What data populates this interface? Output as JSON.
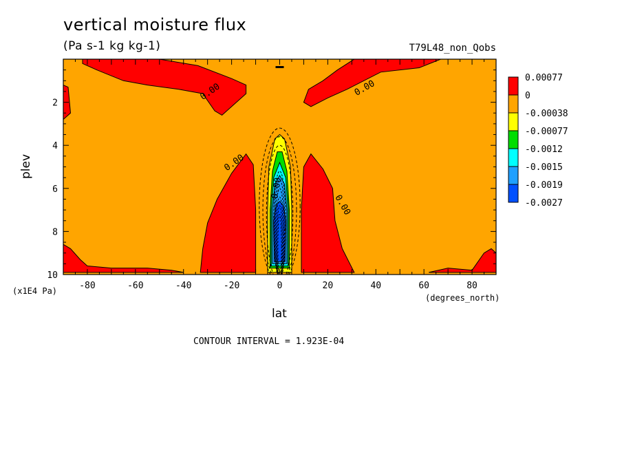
{
  "chart_data": {
    "type": "heatmap",
    "title": "vertical moisture flux",
    "subtitle": "(Pa s-1 kg kg-1)",
    "dataset_label": "T79L48_non_Qobs",
    "xlabel": "lat",
    "xunit": "(degrees_north)",
    "ylabel": "plev",
    "yunit": "(x1E4 Pa)",
    "xlim": [
      -90,
      90
    ],
    "ylim": [
      10,
      0
    ],
    "xticks": [
      -80,
      -60,
      -40,
      -20,
      0,
      20,
      40,
      60,
      80
    ],
    "yticks": [
      2,
      4,
      6,
      8,
      10
    ],
    "footer": "CONTOUR INTERVAL = 1.923E-04",
    "contour_label": "0.00",
    "legend": [
      {
        "label": "0.00077",
        "color": "#ff0000"
      },
      {
        "label": "0",
        "color": "#ffa500"
      },
      {
        "label": "-0.00038",
        "color": "#ffff00"
      },
      {
        "label": "-0.00077",
        "color": "#00dd00"
      },
      {
        "label": "-0.0012",
        "color": "#00ffff"
      },
      {
        "label": "-0.0015",
        "color": "#1fa0ff"
      },
      {
        "label": "-0.0019",
        "color": "#0050ff"
      },
      {
        "label": "-0.0027",
        "color": ""
      }
    ],
    "regions": [
      {
        "name": "upper-left-positive",
        "color": "#ff0000",
        "points": [
          [
            -90,
            1.2
          ],
          [
            -88,
            1.3
          ],
          [
            -87,
            2.5
          ],
          [
            -90,
            2.8
          ]
        ]
      },
      {
        "name": "upper-band-left",
        "color": "#ff0000",
        "points": [
          [
            -82,
            0.0
          ],
          [
            -50,
            0.0
          ],
          [
            -34,
            0.3
          ],
          [
            -20,
            0.9
          ],
          [
            -14,
            1.2
          ],
          [
            -14,
            1.6
          ],
          [
            -18,
            2.0
          ],
          [
            -24,
            2.6
          ],
          [
            -27,
            2.4
          ],
          [
            -32,
            1.6
          ],
          [
            -42,
            1.4
          ],
          [
            -55,
            1.2
          ],
          [
            -65,
            1.0
          ],
          [
            -76,
            0.5
          ],
          [
            -82,
            0.2
          ]
        ]
      },
      {
        "name": "upper-band-right",
        "color": "#ff0000",
        "points": [
          [
            31,
            0.0
          ],
          [
            67,
            0.0
          ],
          [
            58,
            0.4
          ],
          [
            42,
            0.6
          ],
          [
            28,
            1.4
          ],
          [
            20,
            1.8
          ],
          [
            13,
            2.2
          ],
          [
            10,
            2.0
          ],
          [
            12,
            1.4
          ],
          [
            18,
            1.0
          ],
          [
            24,
            0.5
          ]
        ]
      },
      {
        "name": "left-lobe",
        "color": "#ff0000",
        "points": [
          [
            -33,
            9.9
          ],
          [
            -32,
            8.8
          ],
          [
            -30,
            7.6
          ],
          [
            -26,
            6.5
          ],
          [
            -20,
            5.3
          ],
          [
            -14,
            4.4
          ],
          [
            -11,
            4.9
          ],
          [
            -10,
            7.0
          ],
          [
            -10,
            9.9
          ]
        ]
      },
      {
        "name": "right-lobe",
        "color": "#ff0000",
        "points": [
          [
            9,
            9.9
          ],
          [
            9,
            7.0
          ],
          [
            10,
            5.0
          ],
          [
            13,
            4.4
          ],
          [
            18,
            5.1
          ],
          [
            22,
            6.0
          ],
          [
            23,
            7.5
          ],
          [
            26,
            8.8
          ],
          [
            31,
            9.9
          ]
        ]
      },
      {
        "name": "bottom-left-strip",
        "color": "#ff0000",
        "points": [
          [
            -90,
            8.6
          ],
          [
            -87,
            8.8
          ],
          [
            -83,
            9.3
          ],
          [
            -80,
            9.6
          ],
          [
            -70,
            9.7
          ],
          [
            -55,
            9.7
          ],
          [
            -45,
            9.8
          ],
          [
            -40,
            9.9
          ],
          [
            -90,
            9.9
          ]
        ]
      },
      {
        "name": "bottom-right-strip",
        "color": "#ff0000",
        "points": [
          [
            62,
            9.9
          ],
          [
            70,
            9.7
          ],
          [
            80,
            9.8
          ],
          [
            85,
            9.0
          ],
          [
            88,
            8.8
          ],
          [
            90,
            9.0
          ],
          [
            90,
            9.9
          ]
        ]
      },
      {
        "name": "core-yellow",
        "color": "#ffff00",
        "points": [
          [
            -5,
            9.9
          ],
          [
            -5,
            7.0
          ],
          [
            -4.5,
            5.0
          ],
          [
            -2,
            3.7
          ],
          [
            0,
            3.5
          ],
          [
            2,
            3.7
          ],
          [
            4.5,
            5.0
          ],
          [
            5,
            7.0
          ],
          [
            5,
            9.9
          ]
        ]
      },
      {
        "name": "core-green",
        "color": "#00dd00",
        "points": [
          [
            -4,
            9.7
          ],
          [
            -4,
            7.0
          ],
          [
            -3,
            5.2
          ],
          [
            -1,
            4.3
          ],
          [
            1,
            4.3
          ],
          [
            3,
            5.2
          ],
          [
            4,
            7.0
          ],
          [
            4,
            9.7
          ]
        ]
      },
      {
        "name": "core-cyan",
        "color": "#00ffff",
        "points": [
          [
            -3.5,
            9.6
          ],
          [
            -3.5,
            7.0
          ],
          [
            -2.5,
            5.5
          ],
          [
            0,
            4.8
          ],
          [
            2.5,
            5.5
          ],
          [
            3.5,
            7.0
          ],
          [
            3.5,
            9.6
          ]
        ]
      },
      {
        "name": "core-light-blue",
        "color": "#1fa0ff",
        "points": [
          [
            -3,
            9.5
          ],
          [
            -3,
            7.0
          ],
          [
            -2,
            5.8
          ],
          [
            0,
            5.4
          ],
          [
            2,
            5.8
          ],
          [
            3,
            7.0
          ],
          [
            3,
            9.5
          ]
        ]
      },
      {
        "name": "core-deep-blue",
        "color": "#0050ff",
        "points": [
          [
            -2.2,
            9.4
          ],
          [
            -2.5,
            7.5
          ],
          [
            -1.5,
            6.8
          ],
          [
            0,
            6.6
          ],
          [
            1.5,
            6.8
          ],
          [
            2.5,
            7.5
          ],
          [
            2.2,
            9.4
          ]
        ]
      }
    ]
  }
}
